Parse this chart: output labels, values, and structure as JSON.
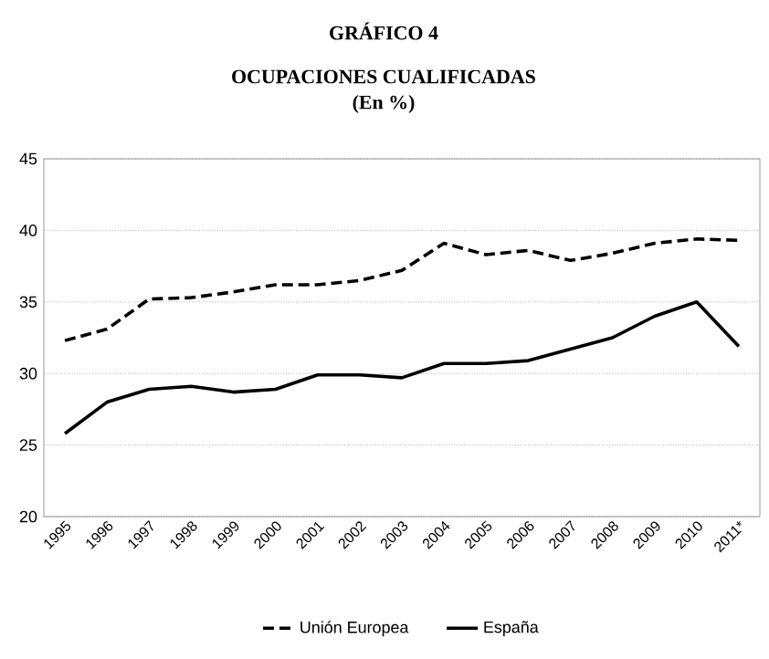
{
  "chart_data": {
    "type": "line",
    "title": "GRÁFICO 4",
    "subtitle": "OCUPACIONES CUALIFICADAS",
    "annotations": [
      "(En %)"
    ],
    "categories": [
      "1995",
      "1996",
      "1997",
      "1998",
      "1999",
      "2000",
      "2001",
      "2002",
      "2003",
      "2004",
      "2005",
      "2006",
      "2007",
      "2008",
      "2009",
      "2010",
      "2011*"
    ],
    "series": [
      {
        "name": "Unión Europea",
        "color": "#000000",
        "line_style": "dashed",
        "values": [
          32.3,
          33.1,
          35.2,
          35.3,
          35.7,
          36.2,
          36.2,
          36.5,
          37.2,
          39.1,
          38.3,
          38.6,
          37.9,
          38.4,
          39.1,
          39.4,
          39.3
        ]
      },
      {
        "name": "España",
        "color": "#000000",
        "line_style": "solid",
        "values": [
          25.8,
          28.0,
          28.9,
          29.1,
          28.7,
          28.9,
          29.9,
          29.9,
          29.7,
          30.7,
          30.7,
          30.9,
          31.7,
          32.5,
          34.0,
          35.0,
          31.9
        ]
      }
    ],
    "ylim": [
      20,
      45
    ],
    "yticks": [
      20,
      25,
      30,
      35,
      40,
      45
    ],
    "grid": "y",
    "legend": "bottom",
    "marker": "none"
  }
}
